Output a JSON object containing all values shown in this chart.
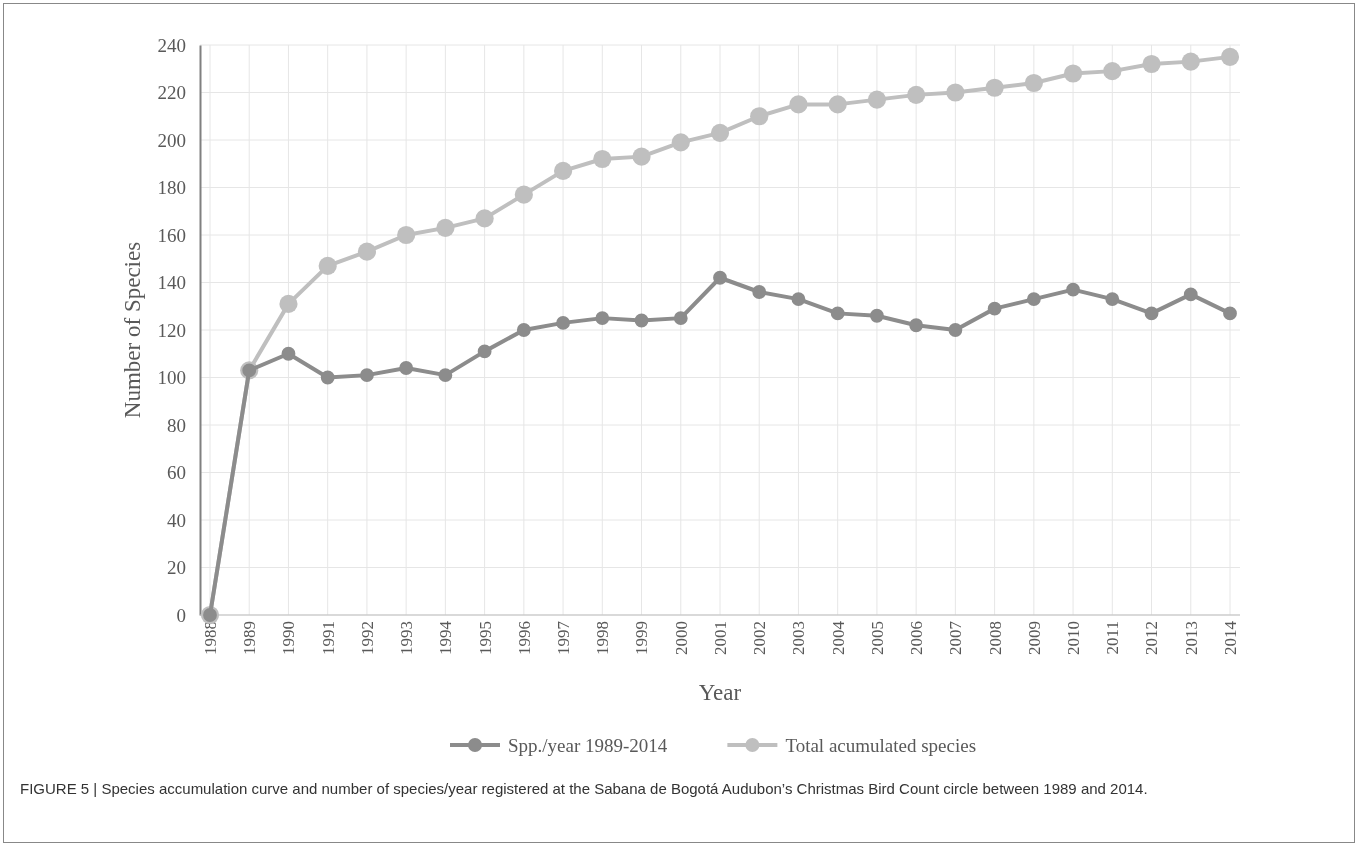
{
  "chart_data": {
    "type": "line",
    "xlabel": "Year",
    "ylabel": "Number of Species",
    "categories": [
      "1988",
      "1989",
      "1990",
      "1991",
      "1992",
      "1993",
      "1994",
      "1995",
      "1996",
      "1997",
      "1998",
      "1999",
      "2000",
      "2001",
      "2002",
      "2003",
      "2004",
      "2005",
      "2006",
      "2007",
      "2008",
      "2009",
      "2010",
      "2011",
      "2012",
      "2013",
      "2014"
    ],
    "series": [
      {
        "name": "Spp./year 1989-2014",
        "color": "#8c8c8c",
        "values": [
          0,
          103,
          110,
          100,
          101,
          104,
          101,
          111,
          120,
          123,
          125,
          124,
          125,
          142,
          136,
          133,
          127,
          126,
          122,
          120,
          129,
          133,
          137,
          133,
          127,
          135,
          127
        ]
      },
      {
        "name": "Total acumulated species",
        "color": "#bfbfbf",
        "values": [
          0,
          103,
          131,
          147,
          153,
          160,
          163,
          167,
          177,
          187,
          192,
          193,
          199,
          203,
          210,
          215,
          215,
          217,
          219,
          220,
          222,
          224,
          228,
          229,
          232,
          233,
          235
        ]
      }
    ],
    "ylim": [
      0,
      240
    ],
    "yticks": [
      0,
      20,
      40,
      60,
      80,
      100,
      120,
      140,
      160,
      180,
      200,
      220,
      240
    ],
    "grid": true,
    "legend": "bottom",
    "marker": "circle",
    "line_style": "solid",
    "annotations": [
      "FIGURE 5 | Species accumulation curve and number of species/year registered at the Sabana de Bogotá Audubon’s Christmas Bird Count circle between 1989 and 2014."
    ]
  }
}
